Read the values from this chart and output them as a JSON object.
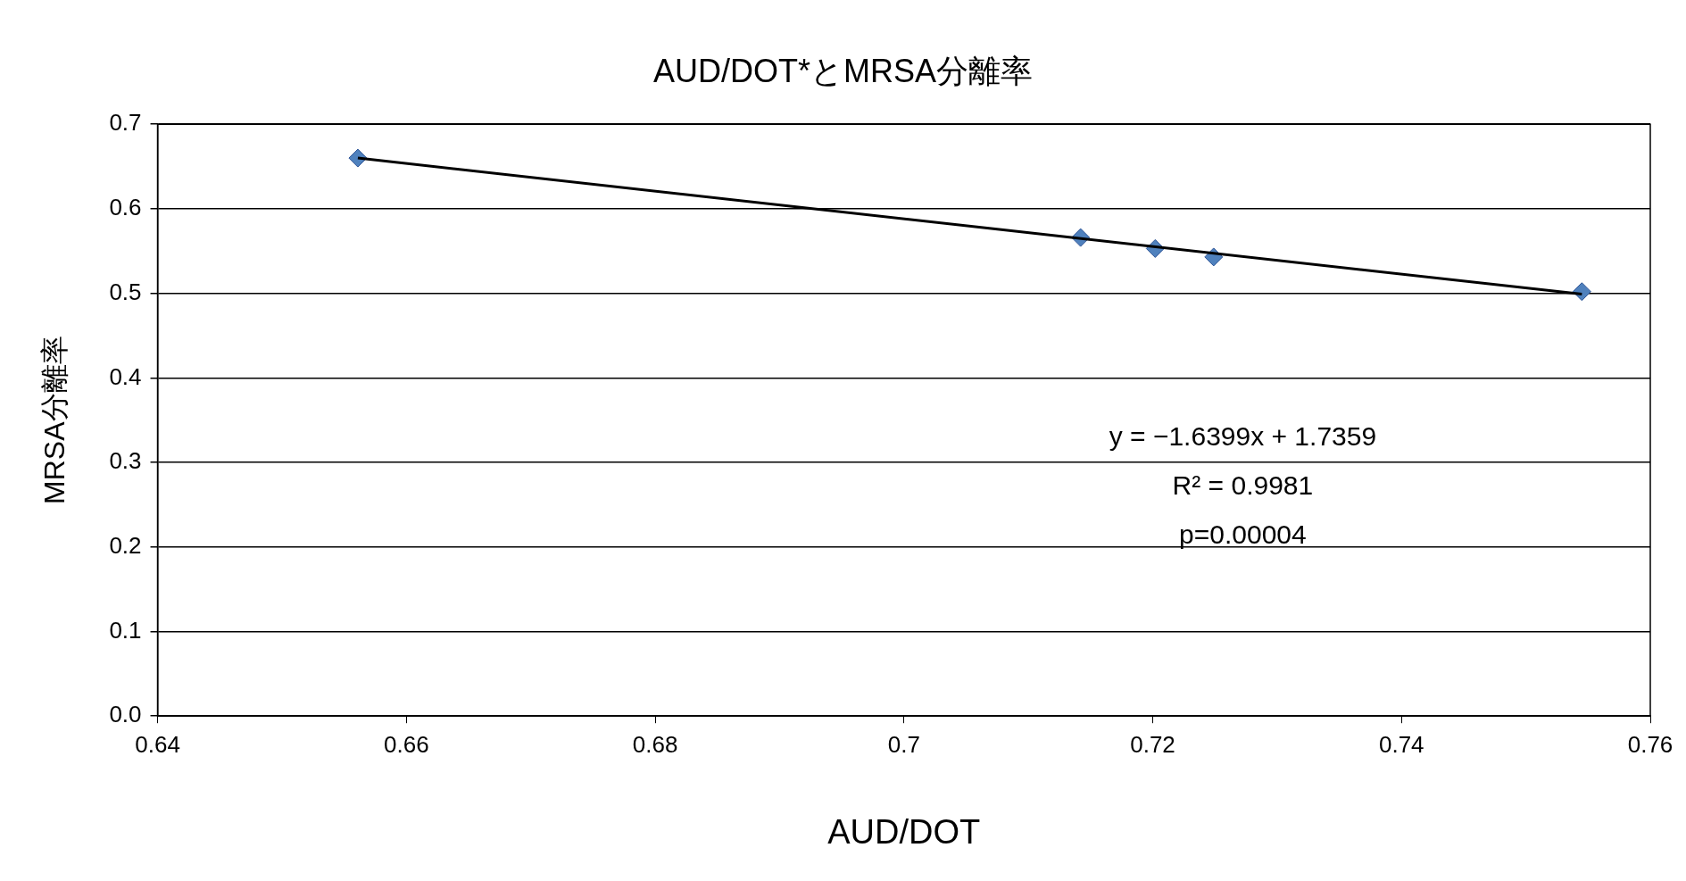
{
  "chart_data": {
    "type": "scatter",
    "title": "AUD/DOT*とMRSA分離率",
    "xlabel": "AUD/DOT",
    "ylabel": "MRSA分離率",
    "xlim": [
      0.64,
      0.76
    ],
    "xticks": [
      0.64,
      0.66,
      0.68,
      0.7,
      0.72,
      0.74,
      0.76
    ],
    "ylim": [
      0,
      0.7
    ],
    "yticks": [
      {
        "value": 0,
        "label": "0.0"
      },
      0.1,
      0.2,
      0.3,
      0.4,
      0.5,
      0.6,
      0.7
    ],
    "grid": "y",
    "legend": false,
    "series": [
      {
        "type": "scatter",
        "color": "#4f81bd",
        "marker": "diamond",
        "x": [
          0.6561,
          0.7142,
          0.7202,
          0.7249,
          0.7545
        ],
        "values": [
          0.66,
          0.566,
          0.553,
          0.543,
          0.502
        ]
      },
      {
        "type": "line",
        "color": "#000000",
        "marker": "none",
        "line_style": "solid",
        "x": [
          0.6561,
          0.7545
        ],
        "values": [
          0.66,
          0.499
        ]
      }
    ],
    "annotations": [
      "y = −1.6399x + 1.7359",
      "R² = 0.9981",
      "p=0.00004"
    ]
  }
}
